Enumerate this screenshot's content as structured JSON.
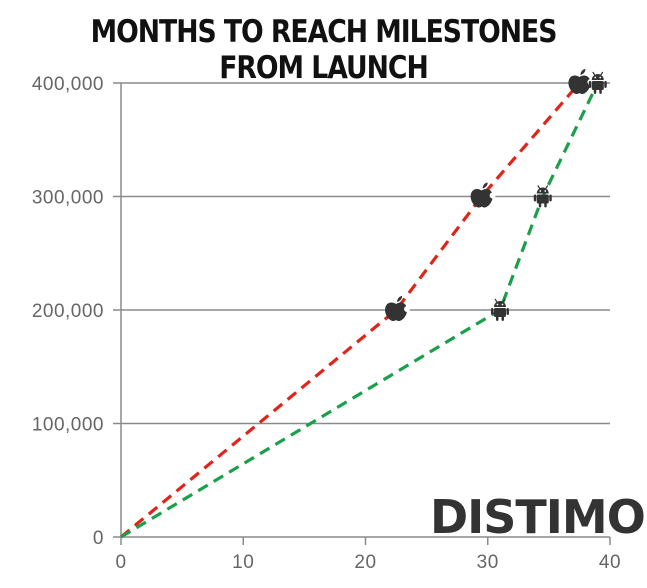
{
  "chart_data": {
    "type": "line",
    "title": "MONTHS TO REACH MILESTONES FROM LAUNCH",
    "xlabel": "",
    "ylabel": "",
    "xlim": [
      0,
      40
    ],
    "ylim": [
      0,
      400000
    ],
    "x_ticks": [
      "0",
      "10",
      "20",
      "30",
      "40"
    ],
    "y_ticks": [
      "0",
      "100,000",
      "200,000",
      "300,000",
      "400,000"
    ],
    "grid": "horizontal",
    "watermark": "DISTIMO",
    "series": [
      {
        "icon": "apple-icon",
        "color": "#e2231a",
        "points": [
          {
            "x": 0,
            "y": 0
          },
          {
            "x": 22.5,
            "y": 200000
          },
          {
            "x": 29.5,
            "y": 300000
          },
          {
            "x": 37.5,
            "y": 400000
          }
        ]
      },
      {
        "icon": "android-icon",
        "color": "#1aa04a",
        "points": [
          {
            "x": 0,
            "y": 0
          },
          {
            "x": 31,
            "y": 200000
          },
          {
            "x": 34.5,
            "y": 300000
          },
          {
            "x": 39,
            "y": 400000
          }
        ]
      }
    ]
  }
}
